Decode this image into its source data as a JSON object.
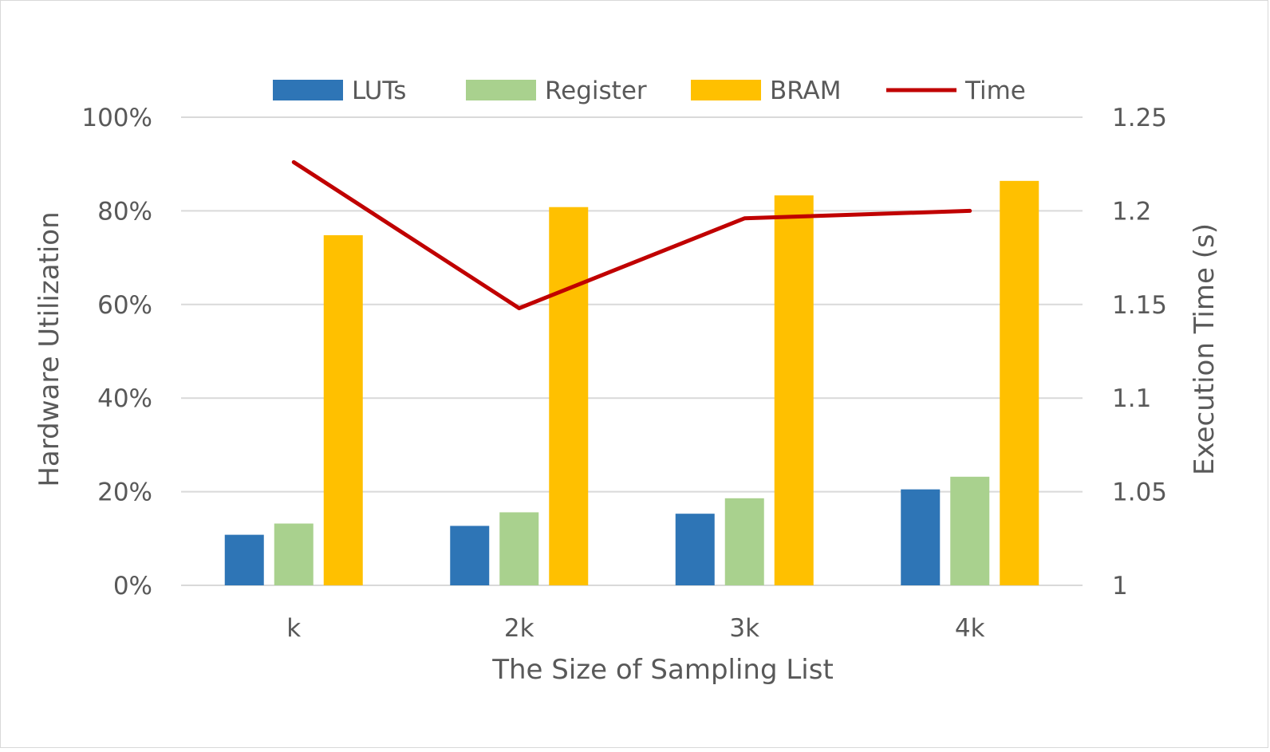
{
  "chart_data": {
    "type": "bar",
    "title": "",
    "xlabel": "The Size of Sampling List",
    "ylabel": "Hardware Utilization",
    "y2label": "Execution Time (s)",
    "categories": [
      "k",
      "2k",
      "3k",
      "4k"
    ],
    "ylim": [
      0,
      100
    ],
    "y_ticks": [
      "0%",
      "20%",
      "40%",
      "60%",
      "80%",
      "100%"
    ],
    "y2lim": [
      1,
      1.25
    ],
    "y2_ticks": [
      "1",
      "1.05",
      "1.1",
      "1.15",
      "1.2",
      "1.25"
    ],
    "grid": true,
    "legend_position": "top",
    "series": [
      {
        "name": "LUTs",
        "kind": "bar",
        "axis": "left",
        "color": "#2e75b6",
        "values": [
          10.8,
          12.7,
          15.3,
          20.5
        ]
      },
      {
        "name": "Register",
        "kind": "bar",
        "axis": "left",
        "color": "#a9d18e",
        "values": [
          13.2,
          15.6,
          18.6,
          23.2
        ]
      },
      {
        "name": "BRAM",
        "kind": "bar",
        "axis": "left",
        "color": "#ffc000",
        "values": [
          74.8,
          80.8,
          83.3,
          86.4
        ]
      },
      {
        "name": "Time",
        "kind": "line",
        "axis": "right",
        "color": "#c00000",
        "values": [
          1.226,
          1.148,
          1.196,
          1.2
        ]
      }
    ]
  }
}
